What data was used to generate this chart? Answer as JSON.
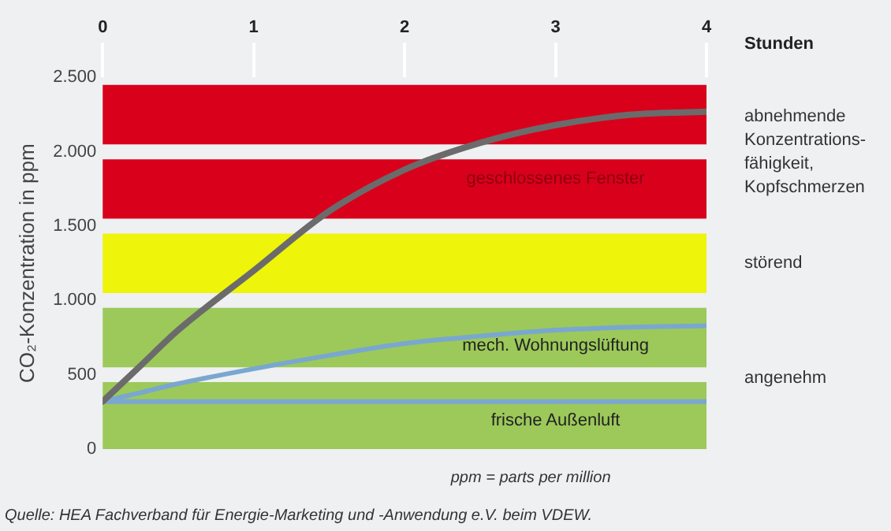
{
  "chart_data": {
    "type": "line",
    "xlabel": "Stunden",
    "ylabel": "CO₂-Konzentration in ppm",
    "xlim": [
      0,
      4
    ],
    "xticks": [
      0,
      1,
      2,
      3,
      4
    ],
    "ylim": [
      0,
      2500
    ],
    "yticks": [
      0,
      500,
      {
        "value": 1000,
        "label": "1.000"
      },
      {
        "value": 1500,
        "label": "1.500"
      },
      {
        "value": 2000,
        "label": "2.000"
      },
      {
        "value": 2500,
        "label": "2.500"
      }
    ],
    "grid": false,
    "legend": false,
    "marker": "none",
    "line_style": "solid",
    "x": [
      0,
      0.25,
      0.5,
      1,
      1.5,
      2,
      2.5,
      3,
      3.5,
      4
    ],
    "series": [
      {
        "name": "geschlossenes Fenster",
        "color": "#6b6b6b",
        "values": [
          320,
          560,
          800,
          1200,
          1600,
          1880,
          2060,
          2180,
          2250,
          2270
        ]
      },
      {
        "name": "mech. Wohnungslüftung",
        "color": "#7aa7cf",
        "values": [
          320,
          380,
          440,
          540,
          630,
          710,
          760,
          800,
          820,
          830
        ]
      },
      {
        "name": "frische Außenluft",
        "color": "#7aa7cf",
        "values": [
          320,
          320,
          320,
          320,
          320,
          320,
          320,
          320,
          320,
          320
        ]
      }
    ],
    "bands": [
      {
        "axis": "y",
        "from": 2050,
        "to": 2450,
        "color": "#d9001b",
        "label": "abnehmende Konzentrations-fähigkeit, Kopfschmerzen"
      },
      {
        "axis": "y",
        "from": 1550,
        "to": 1950,
        "color": "#d9001b",
        "label": null
      },
      {
        "axis": "y",
        "from": 1050,
        "to": 1450,
        "color": "#eef40a",
        "label": "störend"
      },
      {
        "axis": "y",
        "from": 550,
        "to": 950,
        "color": "#9cc95a",
        "label": "angenehm"
      },
      {
        "axis": "y",
        "from": 0,
        "to": 450,
        "color": "#9cc95a",
        "label": null
      }
    ],
    "annotations": [
      "ppm = parts per million",
      "Quelle: HEA Fachverband für Energie-Marketing und -Anwendung e.V. beim VDEW."
    ]
  }
}
